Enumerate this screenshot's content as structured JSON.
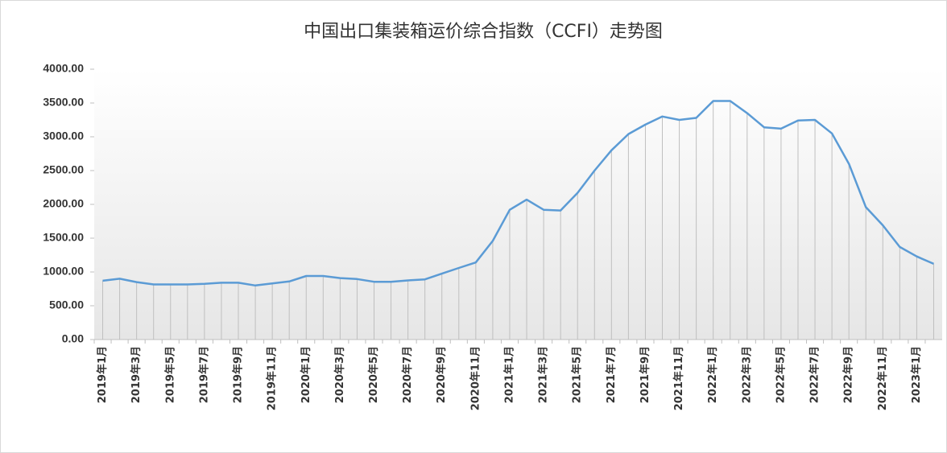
{
  "chart_data": {
    "type": "line",
    "title": "中国出口集装箱运价综合指数（CCFI）走势图",
    "categories": [
      "2019年1月",
      null,
      "2019年3月",
      null,
      "2019年5月",
      null,
      "2019年7月",
      null,
      "2019年9月",
      null,
      "2019年11月",
      null,
      "2020年1月",
      null,
      "2020年3月",
      null,
      "2020年5月",
      null,
      "2020年7月",
      null,
      "2020年9月",
      null,
      "2020年11月",
      null,
      "2021年1月",
      null,
      "2021年3月",
      null,
      "2021年5月",
      null,
      "2021年7月",
      null,
      "2021年9月",
      null,
      "2021年11月",
      null,
      "2022年1月",
      null,
      "2022年3月",
      null,
      "2022年5月",
      null,
      "2022年7月",
      null,
      "2022年9月",
      null,
      "2022年11月",
      null,
      "2023年1月",
      null
    ],
    "series": [
      {
        "name": "CCFI",
        "color": "#5b9bd5",
        "values": [
          870,
          900,
          850,
          815,
          815,
          815,
          825,
          840,
          840,
          800,
          830,
          860,
          940,
          940,
          910,
          895,
          855,
          855,
          875,
          890,
          975,
          1060,
          1140,
          1460,
          1920,
          2070,
          1920,
          1910,
          2170,
          2500,
          2800,
          3040,
          3180,
          3300,
          3250,
          3280,
          3530,
          3530,
          3350,
          3140,
          3120,
          3240,
          3250,
          3050,
          2600,
          1960,
          1690,
          1370,
          1230,
          1120
        ]
      }
    ],
    "ylim": [
      0,
      4000
    ],
    "yticks": [
      {
        "value": 0,
        "label": "0.00"
      },
      {
        "value": 500,
        "label": "500.00"
      },
      {
        "value": 1000,
        "label": "1000.00"
      },
      {
        "value": 1500,
        "label": "1500.00"
      },
      {
        "value": 2000,
        "label": "2000.00"
      },
      {
        "value": 2500,
        "label": "2500.00"
      },
      {
        "value": 3000,
        "label": "3000.00"
      },
      {
        "value": 3500,
        "label": "3500.00"
      },
      {
        "value": 4000,
        "label": "4000.00"
      }
    ],
    "drop_lines": true
  }
}
